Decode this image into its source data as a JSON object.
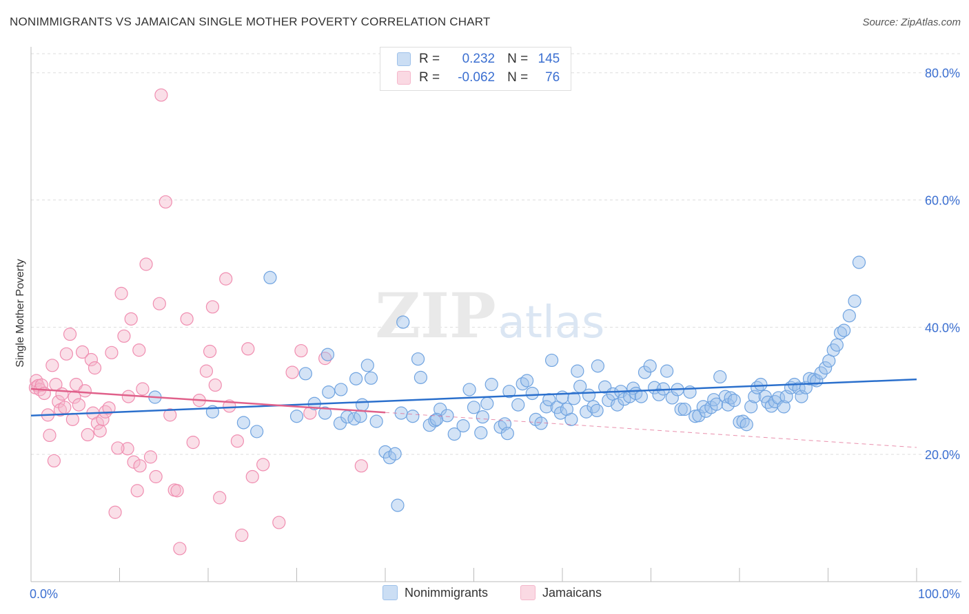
{
  "title": "NONIMMIGRANTS VS JAMAICAN SINGLE MOTHER POVERTY CORRELATION CHART",
  "source": "Source: ZipAtlas.com",
  "watermark": {
    "zip": "ZIP",
    "atlas": "atlas"
  },
  "legend": {
    "rows": [
      {
        "r_label": "R =",
        "r_value": "0.232",
        "n_label": "N =",
        "n_value": "145",
        "color": "#9dc1ea"
      },
      {
        "r_label": "R =",
        "r_value": "-0.062",
        "n_label": "N =",
        "n_value": "76",
        "color": "#f5b7cb"
      }
    ]
  },
  "bottom_legend": [
    {
      "label": "Nonimmigrants",
      "color": "#9dc1ea"
    },
    {
      "label": "Jamaicans",
      "color": "#f5b7cb"
    }
  ],
  "chart_data": {
    "type": "scatter",
    "title": "NONIMMIGRANTS VS JAMAICAN SINGLE MOTHER POVERTY CORRELATION CHART",
    "xlabel": "",
    "ylabel": "Single Mother Poverty",
    "xlim": [
      0,
      100
    ],
    "ylim": [
      0,
      83
    ],
    "x_tick_labels": [
      "0.0%",
      "100.0%"
    ],
    "y_ticks": [
      20,
      40,
      60,
      80
    ],
    "y_tick_labels": [
      "20.0%",
      "40.0%",
      "60.0%",
      "80.0%"
    ],
    "grid": true,
    "legend_position": "top-center",
    "series": [
      {
        "name": "Nonimmigrants",
        "color": "#6fa3e0",
        "trend": {
          "x": [
            0,
            100
          ],
          "y": [
            26.1,
            31.8
          ],
          "style": "solid",
          "color": "#2a6fcc"
        },
        "points": [
          [
            14,
            29
          ],
          [
            27,
            47.8
          ],
          [
            20.5,
            26.7
          ],
          [
            24,
            25
          ],
          [
            30,
            26
          ],
          [
            31,
            32.7
          ],
          [
            32,
            28
          ],
          [
            33.2,
            26.5
          ],
          [
            33.6,
            29.8
          ],
          [
            34.9,
            24.9
          ],
          [
            35.7,
            25.9
          ],
          [
            36.5,
            25.6
          ],
          [
            37.2,
            26
          ],
          [
            37.4,
            27.8
          ],
          [
            38,
            34
          ],
          [
            38.4,
            32
          ],
          [
            39,
            25.2
          ],
          [
            40,
            20.4
          ],
          [
            40.5,
            19.5
          ],
          [
            41.1,
            20.1
          ],
          [
            41.4,
            12
          ],
          [
            42,
            40.8
          ],
          [
            41.8,
            26.5
          ],
          [
            43.1,
            26
          ],
          [
            43.7,
            35
          ],
          [
            44,
            32.1
          ],
          [
            45,
            24.6
          ],
          [
            45.6,
            25.3
          ],
          [
            46.2,
            27.1
          ],
          [
            47,
            26.1
          ],
          [
            47.8,
            23.2
          ],
          [
            48.8,
            24.5
          ],
          [
            49.5,
            30.2
          ],
          [
            50,
            27.4
          ],
          [
            50.8,
            23.4
          ],
          [
            51,
            25.9
          ],
          [
            51.5,
            28
          ],
          [
            52,
            31
          ],
          [
            53,
            24.3
          ],
          [
            53.5,
            24.8
          ],
          [
            53.8,
            23.3
          ],
          [
            54,
            29.9
          ],
          [
            55,
            27.8
          ],
          [
            55.5,
            31.1
          ],
          [
            56,
            31.6
          ],
          [
            56.6,
            29.6
          ],
          [
            57,
            25.5
          ],
          [
            57.6,
            24.9
          ],
          [
            58.2,
            27.5
          ],
          [
            58.5,
            28.6
          ],
          [
            58.8,
            34.8
          ],
          [
            59.4,
            27.4
          ],
          [
            59.8,
            26.5
          ],
          [
            60,
            29
          ],
          [
            60.5,
            27.1
          ],
          [
            61,
            25.5
          ],
          [
            61.3,
            28.8
          ],
          [
            61.7,
            33.1
          ],
          [
            62,
            30.7
          ],
          [
            62.7,
            26.7
          ],
          [
            63,
            29.3
          ],
          [
            63.5,
            27.5
          ],
          [
            63.9,
            26.9
          ],
          [
            64,
            33.9
          ],
          [
            64.8,
            30.6
          ],
          [
            65.2,
            28.5
          ],
          [
            65.7,
            29.5
          ],
          [
            66.2,
            27.8
          ],
          [
            66.6,
            29.9
          ],
          [
            67,
            28.7
          ],
          [
            67.6,
            29.1
          ],
          [
            68,
            30.4
          ],
          [
            68.3,
            29.6
          ],
          [
            68.9,
            29.1
          ],
          [
            69.3,
            32.9
          ],
          [
            69.9,
            33.9
          ],
          [
            70.4,
            30.5
          ],
          [
            70.9,
            29.4
          ],
          [
            71.4,
            30.3
          ],
          [
            71.8,
            33.1
          ],
          [
            72.4,
            28.9
          ],
          [
            73,
            30.2
          ],
          [
            73.4,
            27.1
          ],
          [
            73.8,
            27.1
          ],
          [
            74.4,
            29.8
          ],
          [
            75,
            26
          ],
          [
            75.4,
            26.1
          ],
          [
            75.9,
            27.5
          ],
          [
            76.2,
            26.8
          ],
          [
            76.8,
            27.4
          ],
          [
            77.1,
            28.6
          ],
          [
            77.4,
            27.9
          ],
          [
            77.8,
            32.2
          ],
          [
            78.4,
            29.1
          ],
          [
            78.7,
            27.8
          ],
          [
            79,
            28.9
          ],
          [
            79.4,
            28.5
          ],
          [
            80,
            25.1
          ],
          [
            80.4,
            25.2
          ],
          [
            80.8,
            24.7
          ],
          [
            81.3,
            27.5
          ],
          [
            81.7,
            29.1
          ],
          [
            82,
            30.5
          ],
          [
            82.4,
            31
          ],
          [
            82.9,
            29.1
          ],
          [
            83.2,
            28.2
          ],
          [
            83.6,
            27.6
          ],
          [
            84,
            28.3
          ],
          [
            84.4,
            28.9
          ],
          [
            85,
            27.5
          ],
          [
            85.3,
            29.1
          ],
          [
            85.8,
            30.5
          ],
          [
            86.2,
            31
          ],
          [
            86.7,
            30.4
          ],
          [
            87,
            29.1
          ],
          [
            87.5,
            30.5
          ],
          [
            87.9,
            31.9
          ],
          [
            88.4,
            31.8
          ],
          [
            88.7,
            31.6
          ],
          [
            89.2,
            32.8
          ],
          [
            89.7,
            33.6
          ],
          [
            90.1,
            34.7
          ],
          [
            90.6,
            36.4
          ],
          [
            91,
            37.2
          ],
          [
            91.4,
            39.1
          ],
          [
            91.8,
            39.5
          ],
          [
            92.4,
            41.8
          ],
          [
            93,
            44.1
          ],
          [
            93.5,
            50.2
          ],
          [
            35,
            30.2
          ],
          [
            45.8,
            25.5
          ],
          [
            33.5,
            35.7
          ],
          [
            25.5,
            23.6
          ],
          [
            36.7,
            31.9
          ]
        ]
      },
      {
        "name": "Jamaicans",
        "color": "#f08db0",
        "trend": {
          "x": [
            0,
            40
          ],
          "y": [
            30.3,
            26.6
          ],
          "style": "solid",
          "color": "#e0608a",
          "extension": {
            "x": [
              40,
              100
            ],
            "y": [
              26.6,
              21.1
            ],
            "style": "dashed"
          }
        },
        "points": [
          [
            0.5,
            30.5
          ],
          [
            0.6,
            31.6
          ],
          [
            0.8,
            30.8
          ],
          [
            1,
            30.2
          ],
          [
            1.2,
            30.9
          ],
          [
            1.5,
            29.6
          ],
          [
            1.9,
            26.2
          ],
          [
            2.1,
            23
          ],
          [
            2.4,
            34
          ],
          [
            2.6,
            19
          ],
          [
            2.8,
            31
          ],
          [
            3.1,
            28.3
          ],
          [
            3.3,
            27
          ],
          [
            3.5,
            29.5
          ],
          [
            3.8,
            27.4
          ],
          [
            4,
            35.8
          ],
          [
            4.4,
            38.9
          ],
          [
            4.7,
            25.5
          ],
          [
            4.9,
            29
          ],
          [
            5.1,
            31
          ],
          [
            5.4,
            27.8
          ],
          [
            5.8,
            36.1
          ],
          [
            6.1,
            30
          ],
          [
            6.4,
            23.1
          ],
          [
            6.8,
            34.9
          ],
          [
            7,
            26.5
          ],
          [
            7.2,
            33.6
          ],
          [
            7.5,
            24.9
          ],
          [
            7.8,
            23.7
          ],
          [
            8.1,
            25.5
          ],
          [
            8.4,
            26.7
          ],
          [
            8.8,
            27.3
          ],
          [
            9.1,
            36
          ],
          [
            9.5,
            10.9
          ],
          [
            10.2,
            45.3
          ],
          [
            10.5,
            38.6
          ],
          [
            10.9,
            20.9
          ],
          [
            11.3,
            41.3
          ],
          [
            11.6,
            18.8
          ],
          [
            12,
            14.3
          ],
          [
            12.3,
            18.2
          ],
          [
            12.6,
            30.3
          ],
          [
            13,
            49.9
          ],
          [
            13.5,
            19.6
          ],
          [
            14.1,
            16.5
          ],
          [
            14.5,
            43.7
          ],
          [
            14.7,
            76.5
          ],
          [
            15.2,
            59.7
          ],
          [
            15.7,
            26.2
          ],
          [
            16.2,
            14.4
          ],
          [
            16.5,
            14.3
          ],
          [
            16.8,
            5.2
          ],
          [
            17.6,
            41.3
          ],
          [
            18.3,
            21.9
          ],
          [
            19,
            28.5
          ],
          [
            19.8,
            33.1
          ],
          [
            20.2,
            36.2
          ],
          [
            20.5,
            43.2
          ],
          [
            20.8,
            30.9
          ],
          [
            21.3,
            13.2
          ],
          [
            22,
            47.6
          ],
          [
            22.4,
            27.6
          ],
          [
            23.3,
            22.1
          ],
          [
            23.8,
            7.3
          ],
          [
            24.5,
            36.6
          ],
          [
            25,
            16.5
          ],
          [
            26.2,
            18.4
          ],
          [
            28,
            9.3
          ],
          [
            29.5,
            32.9
          ],
          [
            30.5,
            36.3
          ],
          [
            31.5,
            26.5
          ],
          [
            33.2,
            35.1
          ],
          [
            37.3,
            18.2
          ],
          [
            12.2,
            36.4
          ],
          [
            9.8,
            21
          ],
          [
            11,
            29.1
          ]
        ]
      }
    ]
  }
}
